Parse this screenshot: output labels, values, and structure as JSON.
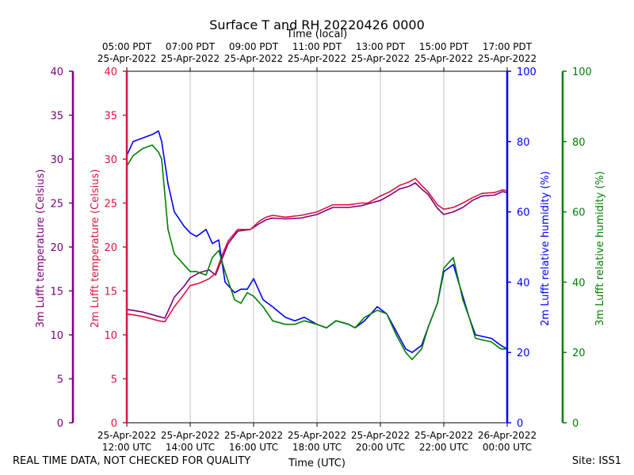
{
  "chart_data": {
    "type": "line",
    "title": "Surface T and RH 20220426 0000",
    "xlabel": "Time (UTC)",
    "x2label": "Time (local)",
    "x_ticks_utc": [
      {
        "hours": 12,
        "date": "25-Apr-2022",
        "time": "12:00 UTC"
      },
      {
        "hours": 14,
        "date": "25-Apr-2022",
        "time": "14:00 UTC"
      },
      {
        "hours": 16,
        "date": "25-Apr-2022",
        "time": "16:00 UTC"
      },
      {
        "hours": 18,
        "date": "25-Apr-2022",
        "time": "18:00 UTC"
      },
      {
        "hours": 20,
        "date": "25-Apr-2022",
        "time": "20:00 UTC"
      },
      {
        "hours": 22,
        "date": "25-Apr-2022",
        "time": "22:00 UTC"
      },
      {
        "hours": 24,
        "date": "26-Apr-2022",
        "time": "00:00 UTC"
      }
    ],
    "x_ticks_local": [
      {
        "hours": 12,
        "time": "05:00 PDT",
        "date": "25-Apr-2022"
      },
      {
        "hours": 14,
        "time": "07:00 PDT",
        "date": "25-Apr-2022"
      },
      {
        "hours": 16,
        "time": "09:00 PDT",
        "date": "25-Apr-2022"
      },
      {
        "hours": 18,
        "time": "11:00 PDT",
        "date": "25-Apr-2022"
      },
      {
        "hours": 20,
        "time": "13:00 PDT",
        "date": "25-Apr-2022"
      },
      {
        "hours": 22,
        "time": "15:00 PDT",
        "date": "25-Apr-2022"
      },
      {
        "hours": 24,
        "time": "17:00 PDT",
        "date": "25-Apr-2022"
      }
    ],
    "xlim_hours": [
      12,
      24
    ],
    "grid": "vertical",
    "axes": [
      {
        "id": "t3",
        "label": "3m Lufft temperature (Celsius)",
        "color": "#800080",
        "ylim": [
          0,
          40
        ],
        "ticks": [
          0,
          5,
          10,
          15,
          20,
          25,
          30,
          35,
          40
        ]
      },
      {
        "id": "t2",
        "label": "2m Lufft temperature (Celsius)",
        "color": "#dc143c",
        "ylim": [
          0,
          40
        ],
        "ticks": [
          0,
          5,
          10,
          15,
          20,
          25,
          30,
          35,
          40
        ]
      },
      {
        "id": "rh2",
        "label": "2m Lufft relative humidity (%)",
        "color": "#0000ff",
        "ylim": [
          0,
          100
        ],
        "ticks": [
          0,
          20,
          40,
          60,
          80,
          100
        ]
      },
      {
        "id": "rh3",
        "label": "3m Lufft relative humidity (%)",
        "color": "#008000",
        "ylim": [
          0,
          100
        ],
        "ticks": [
          0,
          20,
          40,
          60,
          80,
          100
        ]
      }
    ],
    "series": [
      {
        "name": "3m temperature",
        "axis": "t3",
        "color": "#800080",
        "x": [
          12.0,
          12.5,
          13.0,
          13.2,
          13.5,
          13.8,
          14.0,
          14.3,
          14.6,
          14.8,
          15.0,
          15.2,
          15.5,
          15.9,
          16.2,
          16.4,
          16.6,
          17.0,
          17.5,
          18.0,
          18.5,
          19.0,
          19.4,
          19.6,
          20.0,
          20.3,
          20.6,
          20.9,
          21.1,
          21.3,
          21.5,
          21.8,
          22.0,
          22.3,
          22.6,
          22.9,
          23.2,
          23.6,
          23.85,
          24.0
        ],
        "values": [
          12.9,
          12.6,
          12.1,
          11.9,
          14.3,
          15.5,
          16.5,
          17.1,
          17.4,
          16.8,
          18.6,
          20.4,
          21.8,
          22.0,
          22.7,
          23.1,
          23.3,
          23.2,
          23.3,
          23.7,
          24.5,
          24.5,
          24.7,
          24.9,
          25.3,
          25.9,
          26.6,
          26.9,
          27.3,
          26.6,
          26.0,
          24.4,
          23.7,
          24.0,
          24.5,
          25.3,
          25.8,
          25.9,
          26.3,
          26.2
        ]
      },
      {
        "name": "2m temperature",
        "axis": "t2",
        "color": "#dc143c",
        "x": [
          12.0,
          12.5,
          13.0,
          13.2,
          13.5,
          13.8,
          14.0,
          14.3,
          14.6,
          14.8,
          15.0,
          15.2,
          15.5,
          15.9,
          16.2,
          16.4,
          16.6,
          17.0,
          17.5,
          18.0,
          18.5,
          19.0,
          19.4,
          19.6,
          20.0,
          20.3,
          20.6,
          20.9,
          21.1,
          21.3,
          21.5,
          21.8,
          22.0,
          22.3,
          22.6,
          22.9,
          23.2,
          23.6,
          23.85,
          24.0
        ],
        "values": [
          12.4,
          12.1,
          11.6,
          11.5,
          13.2,
          14.6,
          15.6,
          15.9,
          16.4,
          17.0,
          19.0,
          20.7,
          22.0,
          22.0,
          23.0,
          23.4,
          23.6,
          23.4,
          23.6,
          24.0,
          24.8,
          24.8,
          25.0,
          25.0,
          25.8,
          26.3,
          27.0,
          27.4,
          27.8,
          27.0,
          26.3,
          24.8,
          24.3,
          24.5,
          25.0,
          25.6,
          26.1,
          26.2,
          26.5,
          26.4
        ]
      },
      {
        "name": "2m relative humidity",
        "axis": "rh2",
        "color": "#0000ff",
        "x": [
          12.0,
          12.2,
          12.5,
          12.8,
          13.0,
          13.1,
          13.3,
          13.5,
          13.8,
          14.0,
          14.2,
          14.5,
          14.7,
          14.9,
          15.1,
          15.4,
          15.6,
          15.8,
          16.0,
          16.3,
          16.6,
          17.0,
          17.3,
          17.6,
          18.0,
          18.3,
          18.6,
          19.0,
          19.2,
          19.5,
          19.7,
          19.9,
          20.2,
          20.5,
          20.8,
          21.0,
          21.3,
          21.5,
          21.8,
          22.0,
          22.3,
          22.6,
          22.8,
          23.0,
          23.5,
          23.8,
          24.0
        ],
        "values": [
          76,
          80,
          81,
          82,
          83,
          80,
          68,
          60,
          56,
          54,
          53,
          55,
          51,
          52,
          40,
          37,
          38,
          38,
          41,
          35,
          33,
          30,
          29,
          30,
          28,
          27,
          29,
          28,
          27,
          29,
          31,
          33,
          31,
          26,
          21,
          20,
          22,
          27,
          34,
          43,
          45,
          36,
          30,
          25,
          24,
          22,
          21
        ]
      },
      {
        "name": "3m relative humidity",
        "axis": "rh3",
        "color": "#008000",
        "x": [
          12.0,
          12.2,
          12.5,
          12.8,
          13.0,
          13.1,
          13.3,
          13.5,
          13.8,
          14.0,
          14.2,
          14.5,
          14.7,
          14.9,
          15.1,
          15.4,
          15.6,
          15.8,
          16.0,
          16.3,
          16.6,
          17.0,
          17.3,
          17.6,
          18.0,
          18.3,
          18.6,
          19.0,
          19.2,
          19.5,
          19.7,
          19.9,
          20.2,
          20.5,
          20.8,
          21.0,
          21.3,
          21.5,
          21.8,
          22.0,
          22.3,
          22.6,
          22.8,
          23.0,
          23.5,
          23.8,
          24.0
        ],
        "values": [
          73,
          76,
          78,
          79,
          77,
          75,
          55,
          48,
          45,
          43,
          43,
          42,
          47,
          49,
          43,
          35,
          34,
          37,
          36,
          33,
          29,
          28,
          28,
          29,
          28,
          27,
          29,
          28,
          27,
          30,
          31,
          32,
          31,
          25,
          20,
          18,
          21,
          27,
          34,
          44,
          47,
          35,
          30,
          24,
          23,
          21,
          21
        ]
      }
    ]
  },
  "footer": {
    "note": "REAL TIME DATA, NOT CHECKED FOR QUALITY",
    "site": "Site: ISS1"
  }
}
